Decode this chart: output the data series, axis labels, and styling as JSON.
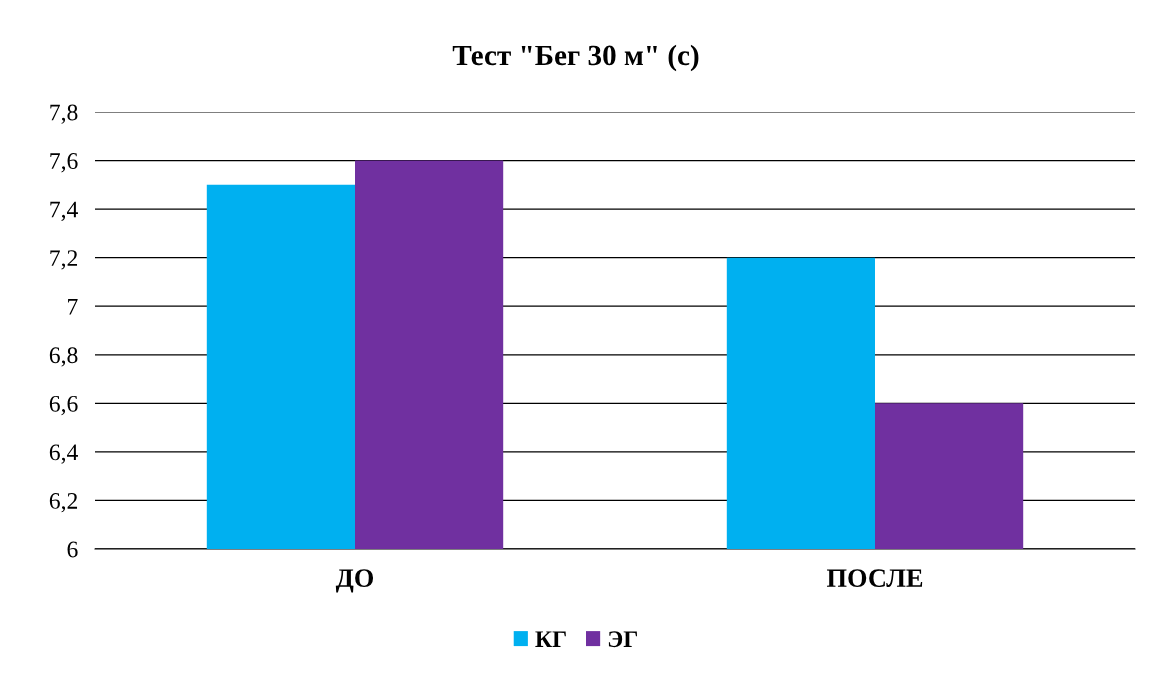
{
  "chart_data": {
    "type": "bar",
    "title": "Тест \"Бег 30 м\" (с)",
    "categories": [
      "ДО",
      "ПОСЛЕ"
    ],
    "series": [
      {
        "name": "КГ",
        "color": "#00b0f0",
        "values": [
          7.5,
          7.2
        ]
      },
      {
        "name": "ЭГ",
        "color": "#7030a0",
        "values": [
          7.6,
          6.6
        ]
      }
    ],
    "ylim": [
      6,
      7.8
    ],
    "yticks": [
      6,
      {
        "value": 6.2,
        "label": "6,2"
      },
      {
        "value": 6.4,
        "label": "6,4"
      },
      {
        "value": 6.6,
        "label": "6,6"
      },
      {
        "value": 6.8,
        "label": "6,8"
      },
      7,
      {
        "value": 7.2,
        "label": "7,2"
      },
      {
        "value": 7.4,
        "label": "7,4"
      },
      {
        "value": 7.6,
        "label": "7,6"
      },
      {
        "value": 7.8,
        "label": "7,8"
      }
    ],
    "grid": "y",
    "legend": "bottom"
  }
}
